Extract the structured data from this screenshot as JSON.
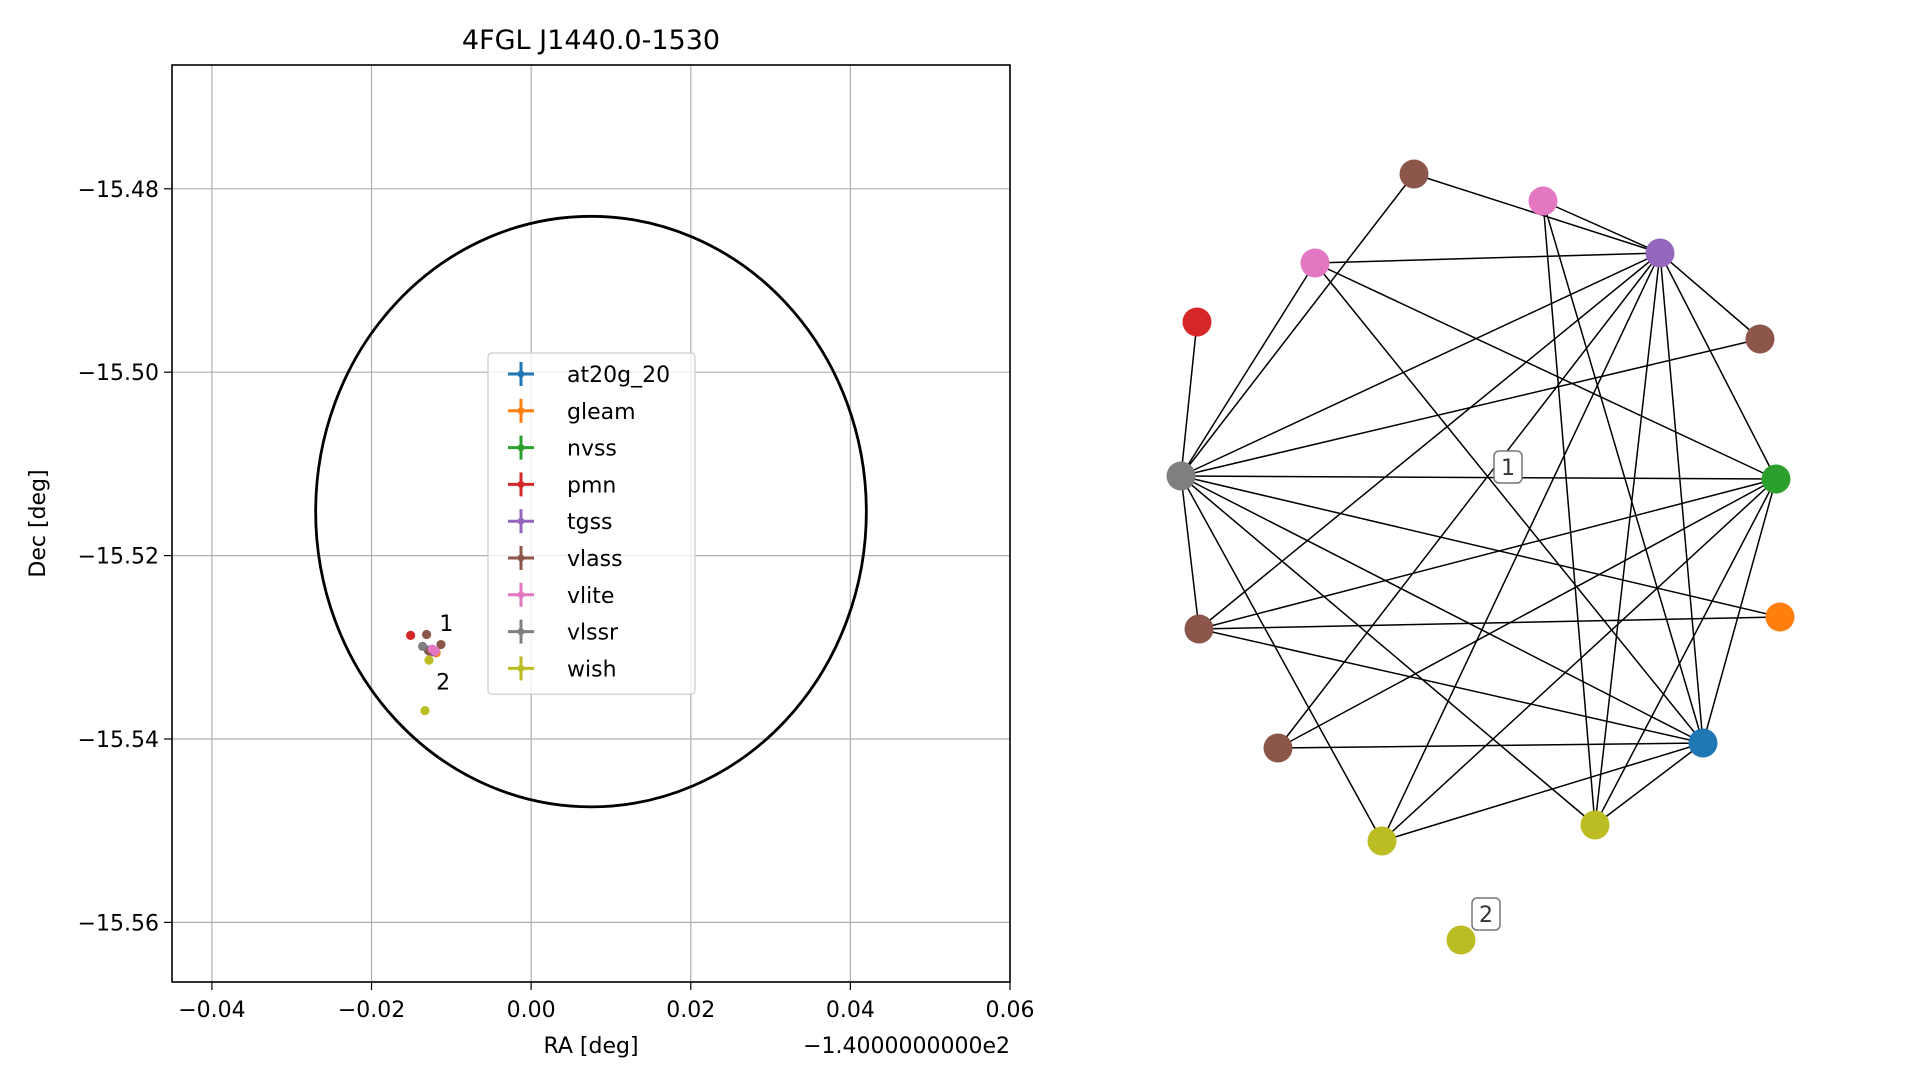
{
  "chart_data": [
    {
      "type": "scatter",
      "title": "4FGL J1440.0-1530",
      "xlabel": "RA [deg]",
      "ylabel": "Dec [deg]",
      "x_offset_label": "−1.4000000000e2",
      "xlim": [
        -0.045,
        0.06
      ],
      "ylim": [
        -15.5665,
        -15.4665
      ],
      "grid": true,
      "legend_position": "center",
      "xticks": [
        {
          "value": -0.04,
          "label": "−0.04"
        },
        {
          "value": -0.02,
          "label": "−0.02"
        },
        {
          "value": 0.0,
          "label": "0.00"
        },
        {
          "value": 0.02,
          "label": "0.02"
        },
        {
          "value": 0.04,
          "label": "0.04"
        },
        {
          "value": 0.06,
          "label": "0.06"
        }
      ],
      "yticks": [
        {
          "value": -15.48,
          "label": "−15.48"
        },
        {
          "value": -15.5,
          "label": "−15.50"
        },
        {
          "value": -15.52,
          "label": "−15.52"
        },
        {
          "value": -15.54,
          "label": "−15.54"
        },
        {
          "value": -15.56,
          "label": "−15.56"
        }
      ],
      "ellipse": {
        "center_x": 0.0075,
        "center_y": -15.5152,
        "semi_x": 0.0345,
        "semi_y": 0.0322,
        "color": "#000000"
      },
      "series": [
        {
          "name": "at20g_20",
          "color": "#1f77b4",
          "points": [
            [
              -0.0129,
              -15.5303
            ]
          ]
        },
        {
          "name": "gleam",
          "color": "#ff7f0e",
          "points": [
            [
              -0.0119,
              -15.5306
            ]
          ]
        },
        {
          "name": "nvss",
          "color": "#2ca02c",
          "points": [
            [
              -0.0125,
              -15.5303
            ]
          ]
        },
        {
          "name": "pmn",
          "color": "#d62728",
          "points": [
            [
              -0.0151,
              -15.5287
            ]
          ]
        },
        {
          "name": "tgss",
          "color": "#9467bd",
          "points": [
            [
              -0.0123,
              -15.5305
            ]
          ]
        },
        {
          "name": "vlass",
          "color": "#8c564b",
          "points": [
            [
              -0.0131,
              -15.5286
            ],
            [
              -0.0113,
              -15.5297
            ],
            [
              -0.0128,
              -15.5304
            ]
          ]
        },
        {
          "name": "vlite",
          "color": "#e377c2",
          "points": [
            [
              -0.0124,
              -15.5302
            ],
            [
              -0.012,
              -15.5304
            ]
          ]
        },
        {
          "name": "vlssr",
          "color": "#7f7f7f",
          "points": [
            [
              -0.0136,
              -15.5299
            ]
          ]
        },
        {
          "name": "wish",
          "color": "#bcbd22",
          "points": [
            [
              -0.0128,
              -15.5314
            ],
            [
              -0.0133,
              -15.5369
            ]
          ]
        }
      ],
      "annotations": [
        {
          "text": "1",
          "x": -0.0115,
          "y": -15.5282
        },
        {
          "text": "2",
          "x": -0.0119,
          "y": -15.5346
        }
      ]
    },
    {
      "type": "network",
      "nodes": [
        {
          "id": "vlass_a",
          "color": "#8c564b"
        },
        {
          "id": "vlite_a",
          "color": "#e377c2"
        },
        {
          "id": "tgss",
          "color": "#9467bd"
        },
        {
          "id": "vlite_b",
          "color": "#e377c2"
        },
        {
          "id": "pmn",
          "color": "#d62728"
        },
        {
          "id": "vlass_b",
          "color": "#8c564b"
        },
        {
          "id": "vlssr",
          "color": "#7f7f7f"
        },
        {
          "id": "nvss",
          "color": "#2ca02c"
        },
        {
          "id": "vlass_c",
          "color": "#8c564b"
        },
        {
          "id": "gleam",
          "color": "#ff7f0e"
        },
        {
          "id": "vlass_d",
          "color": "#8c564b"
        },
        {
          "id": "at20g_20",
          "color": "#1f77b4"
        },
        {
          "id": "wish_a",
          "color": "#bcbd22"
        },
        {
          "id": "wish_b",
          "color": "#bcbd22"
        },
        {
          "id": "wish_c",
          "color": "#bcbd22"
        }
      ],
      "edges": [
        [
          "vlass_a",
          "tgss"
        ],
        [
          "vlass_a",
          "vlssr"
        ],
        [
          "vlite_a",
          "tgss"
        ],
        [
          "vlite_a",
          "at20g_20"
        ],
        [
          "vlite_a",
          "wish_b"
        ],
        [
          "vlite_b",
          "tgss"
        ],
        [
          "vlite_b",
          "vlssr"
        ],
        [
          "vlite_b",
          "nvss"
        ],
        [
          "vlite_b",
          "at20g_20"
        ],
        [
          "pmn",
          "vlssr"
        ],
        [
          "tgss",
          "vlssr"
        ],
        [
          "tgss",
          "vlass_b"
        ],
        [
          "tgss",
          "nvss"
        ],
        [
          "tgss",
          "vlass_c"
        ],
        [
          "tgss",
          "vlass_d"
        ],
        [
          "tgss",
          "at20g_20"
        ],
        [
          "tgss",
          "wish_a"
        ],
        [
          "tgss",
          "wish_b"
        ],
        [
          "vlass_b",
          "vlssr"
        ],
        [
          "vlssr",
          "nvss"
        ],
        [
          "vlssr",
          "vlass_c"
        ],
        [
          "vlssr",
          "gleam"
        ],
        [
          "vlssr",
          "at20g_20"
        ],
        [
          "vlssr",
          "wish_a"
        ],
        [
          "vlssr",
          "wish_b"
        ],
        [
          "nvss",
          "vlass_c"
        ],
        [
          "nvss",
          "vlass_d"
        ],
        [
          "nvss",
          "at20g_20"
        ],
        [
          "nvss",
          "wish_a"
        ],
        [
          "nvss",
          "wish_b"
        ],
        [
          "vlass_c",
          "gleam"
        ],
        [
          "vlass_c",
          "at20g_20"
        ],
        [
          "vlass_d",
          "at20g_20"
        ],
        [
          "at20g_20",
          "wish_a"
        ],
        [
          "at20g_20",
          "wish_b"
        ]
      ],
      "group_labels": [
        "1",
        "2"
      ]
    }
  ]
}
